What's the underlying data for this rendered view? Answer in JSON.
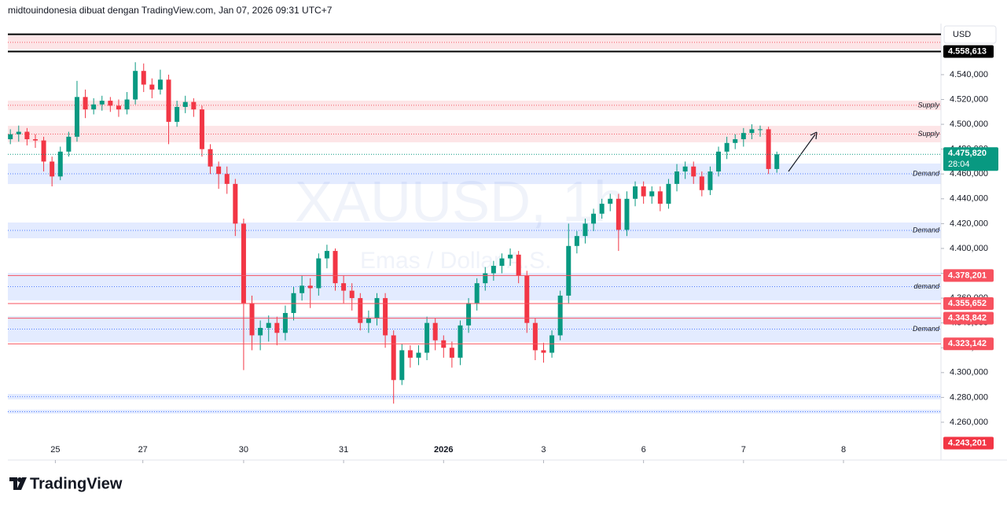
{
  "chart_data": {
    "type": "candlestick",
    "header": "midtouindonesia dibuat dengan TradingView.com, Jan 07, 2026 09:31 UTC+7",
    "watermark": "XAUUSD, 1h",
    "watermark_subtitle": "Emas / Dollar A.S.",
    "currency": "USD",
    "logo": "TradingView",
    "up_color": "#089981",
    "down_color": "#f23645",
    "xlim": [
      -0.3,
      111.7
    ],
    "xticks": [
      {
        "value": 5.4,
        "label": "25"
      },
      {
        "value": 15.9,
        "label": "27"
      },
      {
        "value": 28,
        "label": "30"
      },
      {
        "value": 40,
        "label": "31"
      },
      {
        "value": 52,
        "label": "2026"
      },
      {
        "value": 64,
        "label": "3"
      },
      {
        "value": 76,
        "label": "6"
      },
      {
        "value": 88,
        "label": "7"
      },
      {
        "value": 100,
        "label": "8"
      }
    ],
    "ylim": [
      4.2454,
      4.5748
    ],
    "yticks": [
      {
        "value": 4.26,
        "label": "4.260,000"
      },
      {
        "value": 4.28,
        "label": "4.280,000"
      },
      {
        "value": 4.3,
        "label": "4.300,000"
      },
      {
        "value": 4.32,
        "label": "4.320,000"
      },
      {
        "value": 4.34,
        "label": "4.340,000"
      },
      {
        "value": 4.36,
        "label": "4.360,000"
      },
      {
        "value": 4.38,
        "label": "4.380,000"
      },
      {
        "value": 4.4,
        "label": "4.400,000"
      },
      {
        "value": 4.42,
        "label": "4.420,000"
      },
      {
        "value": 4.44,
        "label": "4.440,000"
      },
      {
        "value": 4.46,
        "label": "4.460,000"
      },
      {
        "value": 4.48,
        "label": "4.480,000"
      },
      {
        "value": 4.5,
        "label": "4.500,000"
      },
      {
        "value": 4.52,
        "label": "4.520,000"
      },
      {
        "value": 4.54,
        "label": "4.540,000"
      }
    ],
    "open": [
      4.488,
      4.492,
      4.494,
      4.488,
      4.487,
      4.47,
      4.458,
      4.478,
      4.49,
      4.522,
      4.512,
      4.516,
      4.519,
      4.515,
      4.512,
      4.52,
      4.543,
      4.532,
      4.528,
      4.536,
      4.502,
      4.514,
      4.518,
      4.512,
      4.48,
      4.466,
      4.46,
      4.452,
      4.42,
      4.356,
      4.33,
      4.336,
      4.34,
      4.332,
      4.348,
      4.364,
      4.37,
      4.368,
      4.392,
      4.398,
      4.372,
      4.366,
      4.36,
      4.34,
      4.344,
      4.36,
      4.33,
      4.294,
      4.318,
      4.312,
      4.316,
      4.34,
      4.326,
      4.32,
      4.312,
      4.338,
      4.356,
      4.372,
      4.38,
      4.386,
      4.392,
      4.395,
      4.378,
      4.34,
      4.318,
      4.316,
      4.33,
      4.362,
      4.402,
      4.41,
      4.42,
      4.428,
      4.436,
      4.44,
      4.415,
      4.44,
      4.45,
      4.442,
      4.446,
      4.436,
      4.452,
      4.462,
      4.466,
      4.458,
      4.447,
      4.462,
      4.478,
      4.485,
      4.488,
      4.493,
      4.496,
      4.496,
      4.464
    ],
    "high": [
      4.496,
      4.499,
      4.497,
      4.492,
      4.49,
      4.474,
      4.482,
      4.494,
      4.535,
      4.528,
      4.521,
      4.523,
      4.522,
      4.52,
      4.526,
      4.55,
      4.549,
      4.537,
      4.544,
      4.54,
      4.519,
      4.523,
      4.521,
      4.515,
      4.484,
      4.47,
      4.466,
      4.456,
      4.424,
      4.362,
      4.342,
      4.346,
      4.345,
      4.354,
      4.369,
      4.378,
      4.376,
      4.396,
      4.403,
      4.4,
      4.378,
      4.372,
      4.364,
      4.35,
      4.364,
      4.364,
      4.334,
      4.323,
      4.322,
      4.322,
      4.345,
      4.344,
      4.33,
      4.325,
      4.342,
      4.36,
      4.376,
      4.385,
      4.39,
      4.396,
      4.4,
      4.398,
      4.382,
      4.344,
      4.324,
      4.334,
      4.366,
      4.42,
      4.414,
      4.424,
      4.432,
      4.44,
      4.444,
      4.444,
      4.446,
      4.454,
      4.454,
      4.45,
      4.45,
      4.456,
      4.468,
      4.47,
      4.47,
      4.462,
      4.466,
      4.482,
      4.49,
      4.492,
      4.497,
      4.5,
      4.499,
      4.498,
      4.478
    ],
    "low": [
      4.484,
      4.486,
      4.483,
      4.481,
      4.462,
      4.45,
      4.455,
      4.474,
      4.486,
      4.505,
      4.508,
      4.511,
      4.51,
      4.506,
      4.508,
      4.516,
      4.526,
      4.521,
      4.524,
      4.484,
      4.498,
      4.509,
      4.506,
      4.474,
      4.46,
      4.448,
      4.444,
      4.41,
      4.302,
      4.318,
      4.318,
      4.325,
      4.322,
      4.326,
      4.342,
      4.358,
      4.352,
      4.362,
      4.384,
      4.366,
      4.356,
      4.35,
      4.334,
      4.332,
      4.338,
      4.32,
      4.275,
      4.29,
      4.304,
      4.306,
      4.31,
      4.318,
      4.312,
      4.304,
      4.306,
      4.332,
      4.35,
      4.366,
      4.374,
      4.38,
      4.386,
      4.372,
      4.332,
      4.31,
      4.308,
      4.312,
      4.326,
      4.356,
      4.396,
      4.404,
      4.414,
      4.424,
      4.43,
      4.398,
      4.41,
      4.434,
      4.436,
      4.436,
      4.43,
      4.432,
      4.446,
      4.456,
      4.452,
      4.442,
      4.443,
      4.458,
      4.472,
      4.48,
      4.482,
      4.488,
      4.49,
      4.46,
      4.461
    ],
    "close": [
      4.492,
      4.494,
      4.488,
      4.487,
      4.47,
      4.458,
      4.478,
      4.49,
      4.522,
      4.512,
      4.516,
      4.519,
      4.515,
      4.512,
      4.52,
      4.543,
      4.532,
      4.528,
      4.536,
      4.502,
      4.514,
      4.518,
      4.512,
      4.48,
      4.466,
      4.46,
      4.452,
      4.42,
      4.356,
      4.33,
      4.336,
      4.34,
      4.332,
      4.348,
      4.364,
      4.37,
      4.368,
      4.392,
      4.398,
      4.372,
      4.366,
      4.36,
      4.34,
      4.344,
      4.36,
      4.33,
      4.294,
      4.318,
      4.312,
      4.316,
      4.34,
      4.326,
      4.32,
      4.312,
      4.338,
      4.356,
      4.372,
      4.38,
      4.386,
      4.392,
      4.395,
      4.378,
      4.34,
      4.318,
      4.316,
      4.33,
      4.362,
      4.402,
      4.41,
      4.42,
      4.428,
      4.436,
      4.44,
      4.415,
      4.44,
      4.45,
      4.442,
      4.446,
      4.436,
      4.452,
      4.462,
      4.466,
      4.458,
      4.447,
      4.462,
      4.478,
      4.485,
      4.488,
      4.493,
      4.496,
      4.496,
      4.464,
      4.47582
    ],
    "zones": [
      {
        "low": 4.5605,
        "high": 4.5715,
        "color": "#f23645"
      },
      {
        "label": "Supply",
        "low": 4.5115,
        "high": 4.5191,
        "color": "#f23645"
      },
      {
        "label": "Supply",
        "low": 4.4855,
        "high": 4.4988,
        "color": "#f23645"
      },
      {
        "label": "Demand",
        "low": 4.4519,
        "high": 4.4684,
        "color": "#2962ff"
      },
      {
        "label": "Demand",
        "low": 4.4082,
        "high": 4.4209,
        "color": "#2962ff"
      },
      {
        "label": "demand",
        "low": 4.3582,
        "high": 4.3803,
        "color": "#2962ff"
      },
      {
        "label": "Demand",
        "low": 4.3246,
        "high": 4.3455,
        "color": "#2962ff"
      },
      {
        "low": 4.2784,
        "high": 4.2828,
        "color": "#2962ff"
      },
      {
        "low": 4.267,
        "high": 4.2701,
        "color": "#2962ff"
      }
    ],
    "price_lines": [
      {
        "value": 4.5725,
        "color": "#000000"
      },
      {
        "value": 4.558613,
        "label": "4.558,613",
        "color": "#000000"
      },
      {
        "value": 4.378201,
        "label": "4.378,201",
        "color": "#f7525f"
      },
      {
        "value": 4.355652,
        "label": "4.355,652",
        "color": "#f7525f"
      },
      {
        "value": 4.343842,
        "label": "4.343,842",
        "color": "#f7525f"
      },
      {
        "value": 4.323142,
        "label": "4.323,142",
        "color": "#f7525f"
      }
    ],
    "price_tags": [
      {
        "value": 4.243201,
        "label": "4.243,201",
        "color": "#f23645"
      }
    ],
    "last_price": {
      "value": 4.47582,
      "label": "4.475,820",
      "countdown": "28:04",
      "color": "#089981"
    }
  }
}
